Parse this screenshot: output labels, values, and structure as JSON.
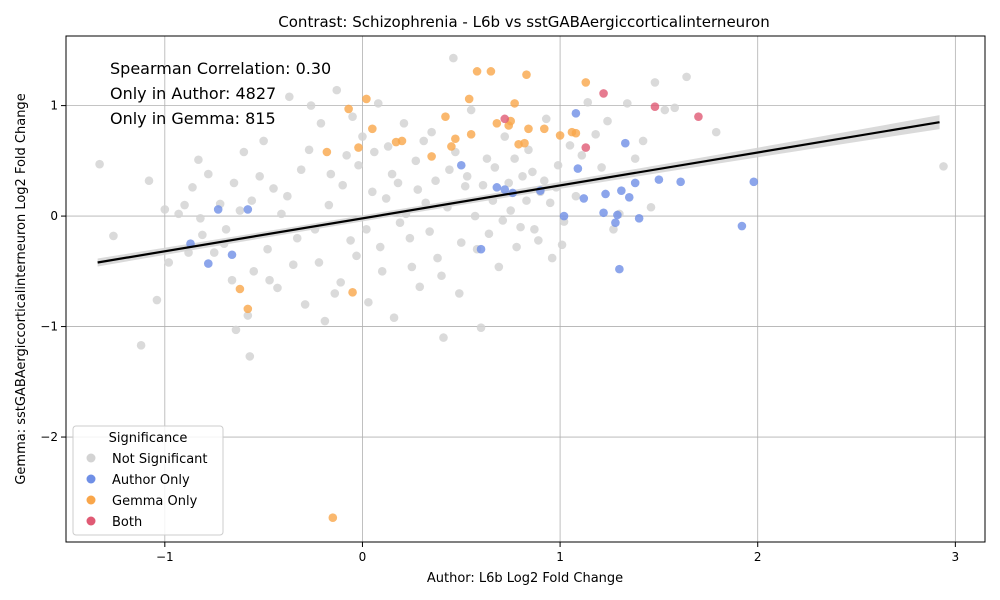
{
  "chart_data": {
    "type": "scatter",
    "title": "Contrast: Schizophrenia - L6b vs sstGABAergiccorticalinterneuron",
    "xlabel": "Author: L6b Log2 Fold Change",
    "ylabel": "Gemma: sstGABAergiccorticalinterneuron Log2 Fold Change",
    "xlim": [
      -1.5,
      3.15
    ],
    "ylim": [
      -2.95,
      1.63
    ],
    "x_ticks": [
      -1,
      0,
      1,
      2,
      3
    ],
    "y_ticks": [
      -2,
      -1,
      0,
      1
    ],
    "grid": true,
    "annotations": [
      "Spearman Correlation: 0.30",
      "Only in Author: 4827",
      "Only in Gemma: 815"
    ],
    "legend": {
      "title": "Significance",
      "placement": "lower-left",
      "entries": [
        "Not Significant",
        "Author Only",
        "Gemma Only",
        "Both"
      ]
    },
    "regression_line": {
      "x": [
        -1.34,
        2.92
      ],
      "y": [
        -0.42,
        0.85
      ],
      "color": "#000000",
      "ci_color": "#d3d3d3"
    },
    "colors": {
      "Not Significant": "#d3d3d3",
      "Author Only": "#6f8fe6",
      "Gemma Only": "#f9a64a",
      "Both": "#e05a74"
    },
    "series": [
      {
        "name": "Not Significant",
        "points": [
          [
            -1.33,
            0.47
          ],
          [
            -1.26,
            -0.18
          ],
          [
            -1.12,
            -1.17
          ],
          [
            -1.08,
            0.32
          ],
          [
            -1.04,
            -0.76
          ],
          [
            -1.0,
            0.06
          ],
          [
            -0.98,
            -0.42
          ],
          [
            -0.93,
            0.02
          ],
          [
            -0.9,
            0.1
          ],
          [
            -0.86,
            0.26
          ],
          [
            -0.83,
            0.51
          ],
          [
            -0.82,
            -0.02
          ],
          [
            -0.81,
            -0.17
          ],
          [
            -0.78,
            0.38
          ],
          [
            -0.75,
            -0.33
          ],
          [
            -0.72,
            0.11
          ],
          [
            -0.69,
            -0.12
          ],
          [
            -0.66,
            -0.58
          ],
          [
            -0.65,
            0.3
          ],
          [
            -0.64,
            -1.03
          ],
          [
            -0.6,
            0.58
          ],
          [
            -0.58,
            -0.9
          ],
          [
            -0.57,
            -1.27
          ],
          [
            -0.56,
            0.14
          ],
          [
            -0.55,
            -0.5
          ],
          [
            -0.5,
            0.68
          ],
          [
            -0.48,
            -0.3
          ],
          [
            -0.45,
            0.25
          ],
          [
            -0.43,
            -0.65
          ],
          [
            -0.41,
            0.02
          ],
          [
            -0.37,
            1.08
          ],
          [
            -0.35,
            -0.44
          ],
          [
            -0.31,
            0.42
          ],
          [
            -0.29,
            -0.8
          ],
          [
            -0.26,
            1.0
          ],
          [
            -0.24,
            -0.12
          ],
          [
            -0.21,
            0.84
          ],
          [
            -0.19,
            -0.95
          ],
          [
            -0.16,
            0.38
          ],
          [
            -0.13,
            1.14
          ],
          [
            -0.11,
            -0.6
          ],
          [
            -0.08,
            0.55
          ],
          [
            -0.05,
            0.9
          ],
          [
            -0.03,
            -0.36
          ],
          [
            0.0,
            0.72
          ],
          [
            0.03,
            -0.78
          ],
          [
            0.05,
            0.22
          ],
          [
            0.08,
            1.02
          ],
          [
            0.1,
            -0.5
          ],
          [
            0.13,
            0.63
          ],
          [
            0.16,
            -0.92
          ],
          [
            0.18,
            0.3
          ],
          [
            0.21,
            0.84
          ],
          [
            0.24,
            -0.2
          ],
          [
            0.27,
            0.5
          ],
          [
            0.29,
            -0.64
          ],
          [
            0.32,
            0.12
          ],
          [
            0.35,
            0.76
          ],
          [
            0.38,
            -0.38
          ],
          [
            0.41,
            -1.1
          ],
          [
            0.44,
            0.42
          ],
          [
            0.46,
            1.43
          ],
          [
            0.49,
            -0.7
          ],
          [
            0.52,
            0.27
          ],
          [
            0.55,
            0.96
          ],
          [
            0.58,
            -0.3
          ],
          [
            0.6,
            -1.01
          ],
          [
            0.63,
            0.52
          ],
          [
            0.66,
            0.14
          ],
          [
            0.69,
            -0.46
          ],
          [
            0.72,
            0.72
          ],
          [
            0.75,
            0.05
          ],
          [
            0.78,
            -0.28
          ],
          [
            0.81,
            0.36
          ],
          [
            0.84,
            0.6
          ],
          [
            0.87,
            -0.12
          ],
          [
            0.9,
            0.22
          ],
          [
            0.93,
            0.88
          ],
          [
            0.96,
            -0.38
          ],
          [
            0.99,
            0.46
          ],
          [
            1.02,
            -0.05
          ],
          [
            1.05,
            0.64
          ],
          [
            1.08,
            0.18
          ],
          [
            1.11,
            0.55
          ],
          [
            1.14,
            1.03
          ],
          [
            1.18,
            0.74
          ],
          [
            1.21,
            0.44
          ],
          [
            1.24,
            0.86
          ],
          [
            1.27,
            -0.12
          ],
          [
            1.3,
            0.02
          ],
          [
            1.34,
            1.02
          ],
          [
            1.38,
            0.52
          ],
          [
            1.42,
            0.68
          ],
          [
            1.46,
            0.08
          ],
          [
            1.48,
            1.21
          ],
          [
            1.53,
            0.96
          ],
          [
            1.58,
            0.98
          ],
          [
            1.64,
            1.26
          ],
          [
            1.79,
            0.76
          ],
          [
            2.94,
            0.45
          ],
          [
            -0.88,
            -0.33
          ],
          [
            -0.7,
            -0.25
          ],
          [
            -0.62,
            0.05
          ],
          [
            -0.52,
            0.36
          ],
          [
            -0.47,
            -0.58
          ],
          [
            -0.38,
            0.18
          ],
          [
            -0.33,
            -0.2
          ],
          [
            -0.27,
            0.6
          ],
          [
            -0.22,
            -0.42
          ],
          [
            -0.17,
            0.1
          ],
          [
            -0.14,
            -0.7
          ],
          [
            -0.1,
            0.28
          ],
          [
            -0.06,
            -0.22
          ],
          [
            -0.02,
            0.46
          ],
          [
            0.02,
            -0.12
          ],
          [
            0.06,
            0.58
          ],
          [
            0.09,
            -0.28
          ],
          [
            0.12,
            0.16
          ],
          [
            0.15,
            0.38
          ],
          [
            0.19,
            -0.06
          ],
          [
            0.22,
            0.02
          ],
          [
            0.25,
            -0.46
          ],
          [
            0.28,
            0.24
          ],
          [
            0.31,
            0.68
          ],
          [
            0.34,
            -0.14
          ],
          [
            0.37,
            0.32
          ],
          [
            0.4,
            -0.54
          ],
          [
            0.43,
            0.08
          ],
          [
            0.47,
            0.58
          ],
          [
            0.5,
            -0.24
          ],
          [
            0.53,
            0.36
          ],
          [
            0.57,
            0.0
          ],
          [
            0.61,
            0.28
          ],
          [
            0.64,
            -0.16
          ],
          [
            0.67,
            0.44
          ],
          [
            0.71,
            -0.04
          ],
          [
            0.74,
            0.3
          ],
          [
            0.77,
            0.52
          ],
          [
            0.8,
            -0.1
          ],
          [
            0.83,
            0.14
          ],
          [
            0.86,
            0.4
          ],
          [
            0.89,
            -0.22
          ],
          [
            0.92,
            0.32
          ],
          [
            0.95,
            0.12
          ],
          [
            0.98,
            0.26
          ],
          [
            1.01,
            -0.26
          ]
        ]
      },
      {
        "name": "Author Only",
        "points": [
          [
            -0.87,
            -0.25
          ],
          [
            -0.78,
            -0.43
          ],
          [
            -0.73,
            0.06
          ],
          [
            -0.66,
            -0.35
          ],
          [
            -0.58,
            0.06
          ],
          [
            0.5,
            0.46
          ],
          [
            0.6,
            -0.3
          ],
          [
            0.68,
            0.26
          ],
          [
            0.72,
            0.24
          ],
          [
            0.76,
            0.21
          ],
          [
            0.9,
            0.23
          ],
          [
            1.02,
            0.0
          ],
          [
            1.08,
            0.93
          ],
          [
            1.09,
            0.43
          ],
          [
            1.12,
            0.16
          ],
          [
            1.22,
            0.03
          ],
          [
            1.23,
            0.2
          ],
          [
            1.28,
            -0.06
          ],
          [
            1.29,
            0.01
          ],
          [
            1.3,
            -0.48
          ],
          [
            1.31,
            0.23
          ],
          [
            1.33,
            0.66
          ],
          [
            1.35,
            0.17
          ],
          [
            1.38,
            0.3
          ],
          [
            1.4,
            -0.02
          ],
          [
            1.5,
            0.33
          ],
          [
            1.61,
            0.31
          ],
          [
            1.92,
            -0.09
          ],
          [
            1.98,
            0.31
          ]
        ]
      },
      {
        "name": "Gemma Only",
        "points": [
          [
            -0.62,
            -0.66
          ],
          [
            -0.58,
            -0.84
          ],
          [
            -0.18,
            0.58
          ],
          [
            -0.15,
            -2.73
          ],
          [
            -0.07,
            0.97
          ],
          [
            -0.05,
            -0.69
          ],
          [
            -0.02,
            0.62
          ],
          [
            0.02,
            1.06
          ],
          [
            0.05,
            0.79
          ],
          [
            0.17,
            0.67
          ],
          [
            0.2,
            0.68
          ],
          [
            0.35,
            0.54
          ],
          [
            0.42,
            0.9
          ],
          [
            0.45,
            0.63
          ],
          [
            0.47,
            0.7
          ],
          [
            0.55,
            0.74
          ],
          [
            0.54,
            1.06
          ],
          [
            0.58,
            1.31
          ],
          [
            0.65,
            1.31
          ],
          [
            0.68,
            0.84
          ],
          [
            0.74,
            0.82
          ],
          [
            0.75,
            0.86
          ],
          [
            0.77,
            1.02
          ],
          [
            0.79,
            0.65
          ],
          [
            0.82,
            0.66
          ],
          [
            0.83,
            1.28
          ],
          [
            0.84,
            0.79
          ],
          [
            0.92,
            0.79
          ],
          [
            1.0,
            0.73
          ],
          [
            1.06,
            0.76
          ],
          [
            1.08,
            0.75
          ],
          [
            1.13,
            1.21
          ]
        ]
      },
      {
        "name": "Both",
        "points": [
          [
            0.72,
            0.88
          ],
          [
            1.13,
            0.62
          ],
          [
            1.22,
            1.11
          ],
          [
            1.48,
            0.99
          ],
          [
            1.7,
            0.9
          ]
        ]
      }
    ]
  }
}
